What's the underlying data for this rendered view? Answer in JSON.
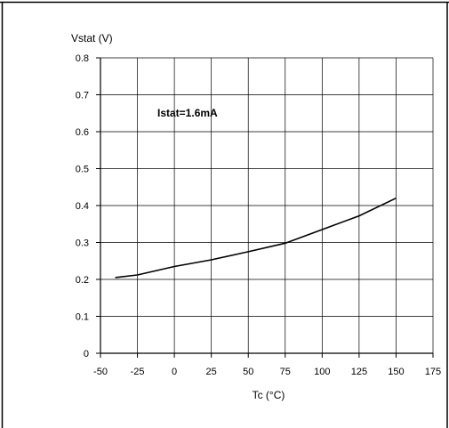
{
  "chart_data": {
    "type": "line",
    "title": "",
    "ylabel": "Vstat (V)",
    "xlabel": "Tc (°C)",
    "annotation": "Istat=1.6mA",
    "xlim": [
      -50,
      175
    ],
    "ylim": [
      0,
      0.8
    ],
    "xticks": [
      -50,
      -25,
      0,
      25,
      50,
      75,
      100,
      125,
      150,
      175
    ],
    "yticks": [
      0,
      0.1,
      0.2,
      0.3,
      0.4,
      0.5,
      0.6,
      0.7,
      0.8
    ],
    "xtick_labels": [
      "-50",
      "-25",
      "0",
      "25",
      "50",
      "75",
      "100",
      "125",
      "150",
      "175"
    ],
    "ytick_labels": [
      "0",
      "0.1",
      "0.2",
      "0.3",
      "0.4",
      "0.5",
      "0.6",
      "0.7",
      "0.8"
    ],
    "grid": true,
    "series": [
      {
        "x": [
          -40,
          -25,
          0,
          25,
          50,
          75,
          100,
          125,
          150
        ],
        "y": [
          0.205,
          0.212,
          0.235,
          0.253,
          0.275,
          0.298,
          0.335,
          0.372,
          0.42
        ]
      }
    ]
  }
}
